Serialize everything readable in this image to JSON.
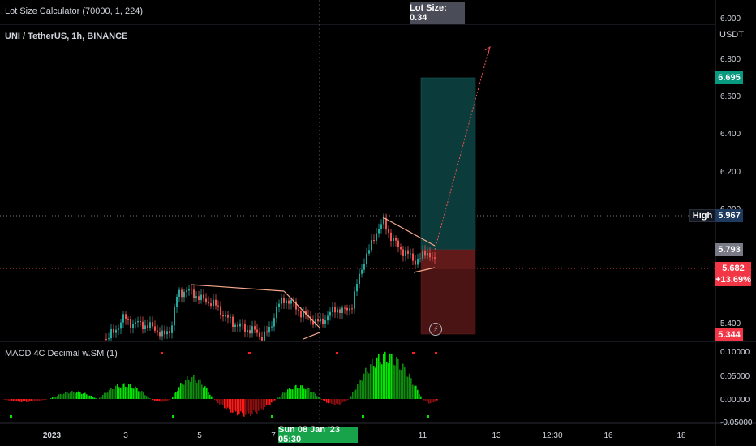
{
  "indicator_title": "Lot Size Calculator (70000, 1, 224)",
  "lot_size_badge": "Lot Size: 0.34",
  "symbol_title": "UNI / TetherUS, 1h, BINANCE",
  "macd_title": "MACD 4C Decimal w.SM (1)",
  "currency": "USDT",
  "price_axis_ticks": [
    "6.000",
    "6.800",
    "6.600",
    "6.400",
    "6.200",
    "6.000",
    "5.400"
  ],
  "macd_axis_ticks": [
    "0.10000",
    "0.05000",
    "0.00000",
    "-0.05000"
  ],
  "time_axis_ticks": [
    "2023",
    "3",
    "5",
    "7",
    "11",
    "13",
    "12:30",
    "16",
    "18"
  ],
  "crosshair_time": "Sun 08 Jan '23   05:30",
  "price_tags": {
    "target": "6.695",
    "high_label": "High",
    "high_value": "5.967",
    "entry": "5.793",
    "current": "5.682",
    "change": "+13.69%",
    "stop": "5.344"
  },
  "colors": {
    "background": "#000000",
    "up_candle": "#26a69a",
    "down_candle": "#ef5350",
    "target_zone": "#0b3b3a",
    "stop_zone": "#4a1414",
    "target_tag": "#089981",
    "stop_tag": "#f23645",
    "macd_bright_green": "#00e600",
    "macd_dark_green": "#0f8a0f",
    "macd_bright_red": "#ff1a1a",
    "macd_dark_red": "#8a0f0f",
    "pattern_line": "#f7a98a"
  },
  "icons": [
    "lightning-icon"
  ]
}
